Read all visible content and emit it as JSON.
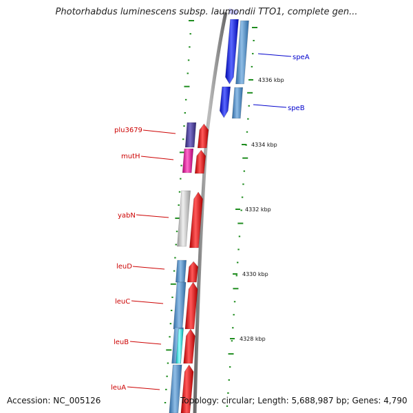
{
  "title": "Photorhabdus luminescens subsp. laumondii TTO1, complete gen...",
  "accession": "Accession: NC_005126",
  "summary": "Topology: circular; Length: 5,688,987 bp; Genes: 4,790",
  "colors": {
    "tick": "#1e8c1e",
    "backbone": "#8c8c8c",
    "forward_label": "#cc0000",
    "reverse_label": "#0000cc",
    "blue_gene": "#0a14f0",
    "steel_gene": "#4a86bf",
    "red_gene": "#ee0000",
    "purple_gene": "#4a3d96",
    "magenta_gene": "#ee1199",
    "grey_gene": "#c4c4c4",
    "cyan_gene": "#11eeee"
  },
  "kbp_labels": [
    "4336 kbp",
    "4334 kbp",
    "4332 kbp",
    "4330 kbp",
    "4328 kbp"
  ],
  "gene_labels": [
    {
      "id": "speA",
      "text": "speA",
      "side": "right"
    },
    {
      "id": "speB",
      "text": "speB",
      "side": "right"
    },
    {
      "id": "plu3679",
      "text": "plu3679",
      "side": "left"
    },
    {
      "id": "mutH",
      "text": "mutH",
      "side": "left"
    },
    {
      "id": "yabN",
      "text": "yabN",
      "side": "left"
    },
    {
      "id": "leuD",
      "text": "leuD",
      "side": "left"
    },
    {
      "id": "leuC",
      "text": "leuC",
      "side": "left"
    },
    {
      "id": "leuB",
      "text": "leuB",
      "side": "left"
    },
    {
      "id": "leuA",
      "text": "leuA",
      "side": "left"
    }
  ]
}
